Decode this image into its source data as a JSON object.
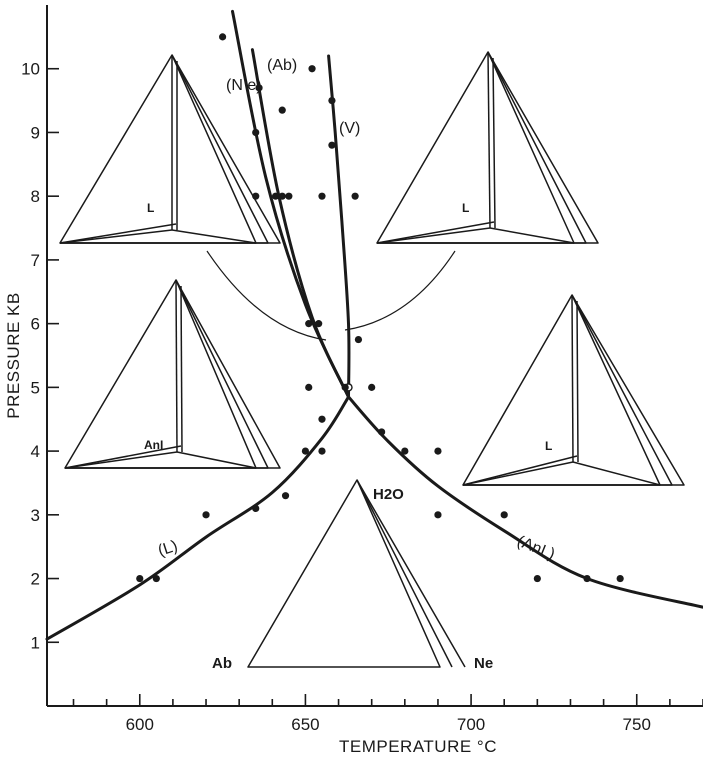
{
  "chart_data": {
    "type": "scatter",
    "title": "",
    "xlabel": "TEMPERATURE °C",
    "ylabel": "PRESSURE KB",
    "xlim": [
      572,
      770
    ],
    "ylim": [
      0,
      11
    ],
    "x_ticks": [
      600,
      650,
      700,
      750
    ],
    "y_ticks": [
      1,
      2,
      3,
      4,
      5,
      6,
      7,
      8,
      9,
      10
    ],
    "grid": false,
    "invariant_point": {
      "x": 663,
      "y": 4.85
    },
    "curves": [
      {
        "name": "(L)",
        "points": [
          [
            572,
            1.05
          ],
          [
            600,
            1.9
          ],
          [
            620,
            2.65
          ],
          [
            640,
            3.35
          ],
          [
            655,
            4.2
          ],
          [
            663,
            4.85
          ]
        ]
      },
      {
        "name": "(AnI )",
        "points": [
          [
            663,
            4.85
          ],
          [
            675,
            4.15
          ],
          [
            690,
            3.45
          ],
          [
            710,
            2.75
          ],
          [
            735,
            2.0
          ],
          [
            770,
            1.55
          ]
        ]
      },
      {
        "name": "(V)",
        "points": [
          [
            663,
            4.85
          ],
          [
            663,
            6.0
          ],
          [
            661,
            7.6
          ],
          [
            659,
            9.0
          ],
          [
            657,
            10.2
          ]
        ]
      },
      {
        "name": "(Ab)",
        "points": [
          [
            663,
            4.85
          ],
          [
            652,
            6.1
          ],
          [
            642,
            8.0
          ],
          [
            634,
            10.3
          ]
        ]
      },
      {
        "name": "(N e)",
        "points": [
          [
            663,
            4.85
          ],
          [
            650,
            6.3
          ],
          [
            638,
            8.3
          ],
          [
            628,
            10.9
          ]
        ]
      }
    ],
    "points": [
      [
        600,
        2.0
      ],
      [
        605,
        2.0
      ],
      [
        620,
        3.0
      ],
      [
        635,
        3.1
      ],
      [
        644,
        3.3
      ],
      [
        650,
        4.0
      ],
      [
        655,
        4.0
      ],
      [
        655,
        4.5
      ],
      [
        651,
        5.0
      ],
      [
        662,
        5.0
      ],
      [
        670,
        5.0
      ],
      [
        651,
        6.0
      ],
      [
        654,
        6.0
      ],
      [
        666,
        5.75
      ],
      [
        673,
        4.3
      ],
      [
        680,
        4.0
      ],
      [
        690,
        4.0
      ],
      [
        690,
        3.0
      ],
      [
        710,
        3.0
      ],
      [
        720,
        2.0
      ],
      [
        735,
        2.0
      ],
      [
        745,
        2.0
      ],
      [
        625,
        10.5
      ],
      [
        652,
        10.0
      ],
      [
        636,
        9.7
      ],
      [
        643,
        9.35
      ],
      [
        658,
        9.5
      ],
      [
        635,
        9.0
      ],
      [
        658,
        8.8
      ],
      [
        635,
        8.0
      ],
      [
        641,
        8.0
      ],
      [
        643,
        8.0
      ],
      [
        645,
        8.0
      ],
      [
        655,
        8.0
      ],
      [
        665,
        8.0
      ]
    ],
    "annotations": [
      "(N e)",
      "(Ab)",
      "(V)",
      "(L)",
      "(AnI )"
    ],
    "diagram_labels": {
      "top_label": "H2O",
      "left_label": "Ab",
      "right_label": "Ne",
      "liquid": "L",
      "analcime": "AnI"
    }
  }
}
